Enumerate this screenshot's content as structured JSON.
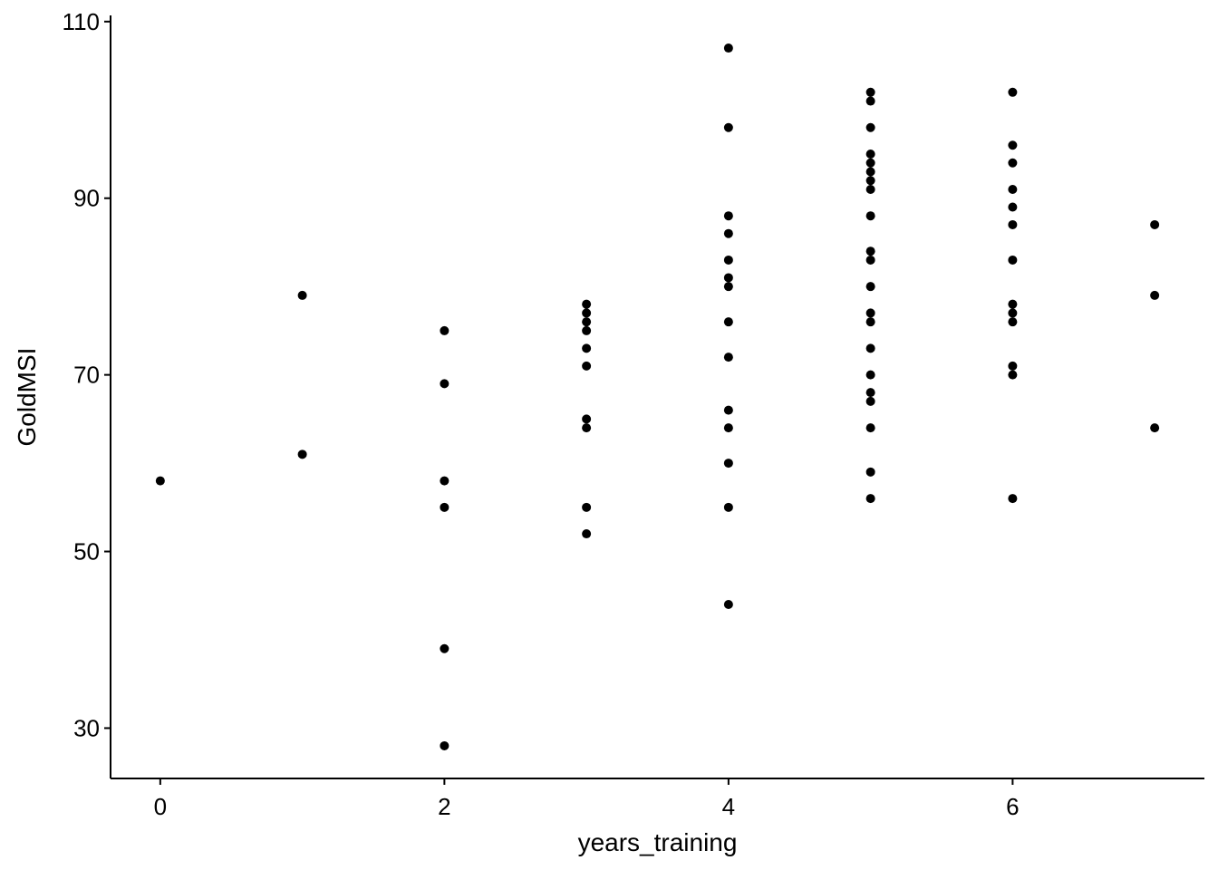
{
  "chart_data": {
    "type": "scatter",
    "title": "",
    "xlabel": "years_training",
    "ylabel": "GoldMSI",
    "xlim": [
      -0.35,
      7.35
    ],
    "ylim": [
      24.3,
      110.7
    ],
    "x_ticks": [
      0,
      2,
      4,
      6
    ],
    "x_tick_labels": [
      "0",
      "2",
      "4",
      "6"
    ],
    "y_ticks": [
      30,
      50,
      70,
      90,
      110
    ],
    "y_tick_labels": [
      "30",
      "50",
      "70",
      "90",
      "110"
    ],
    "grid": false,
    "legend": "none",
    "point_color": "#000000",
    "points": [
      {
        "x": 0,
        "y": 58
      },
      {
        "x": 1,
        "y": 79
      },
      {
        "x": 1,
        "y": 61
      },
      {
        "x": 2,
        "y": 75
      },
      {
        "x": 2,
        "y": 69
      },
      {
        "x": 2,
        "y": 58
      },
      {
        "x": 2,
        "y": 55
      },
      {
        "x": 2,
        "y": 39
      },
      {
        "x": 2,
        "y": 28
      },
      {
        "x": 3,
        "y": 78
      },
      {
        "x": 3,
        "y": 77
      },
      {
        "x": 3,
        "y": 76
      },
      {
        "x": 3,
        "y": 75
      },
      {
        "x": 3,
        "y": 73
      },
      {
        "x": 3,
        "y": 71
      },
      {
        "x": 3,
        "y": 65
      },
      {
        "x": 3,
        "y": 64
      },
      {
        "x": 3,
        "y": 55
      },
      {
        "x": 3,
        "y": 52
      },
      {
        "x": 4,
        "y": 107
      },
      {
        "x": 4,
        "y": 98
      },
      {
        "x": 4,
        "y": 88
      },
      {
        "x": 4,
        "y": 86
      },
      {
        "x": 4,
        "y": 83
      },
      {
        "x": 4,
        "y": 81
      },
      {
        "x": 4,
        "y": 80
      },
      {
        "x": 4,
        "y": 76
      },
      {
        "x": 4,
        "y": 72
      },
      {
        "x": 4,
        "y": 66
      },
      {
        "x": 4,
        "y": 64
      },
      {
        "x": 4,
        "y": 60
      },
      {
        "x": 4,
        "y": 55
      },
      {
        "x": 4,
        "y": 44
      },
      {
        "x": 5,
        "y": 102
      },
      {
        "x": 5,
        "y": 101
      },
      {
        "x": 5,
        "y": 98
      },
      {
        "x": 5,
        "y": 95
      },
      {
        "x": 5,
        "y": 94
      },
      {
        "x": 5,
        "y": 93
      },
      {
        "x": 5,
        "y": 92
      },
      {
        "x": 5,
        "y": 91
      },
      {
        "x": 5,
        "y": 88
      },
      {
        "x": 5,
        "y": 84
      },
      {
        "x": 5,
        "y": 83
      },
      {
        "x": 5,
        "y": 80
      },
      {
        "x": 5,
        "y": 77
      },
      {
        "x": 5,
        "y": 76
      },
      {
        "x": 5,
        "y": 73
      },
      {
        "x": 5,
        "y": 70
      },
      {
        "x": 5,
        "y": 68
      },
      {
        "x": 5,
        "y": 67
      },
      {
        "x": 5,
        "y": 64
      },
      {
        "x": 5,
        "y": 59
      },
      {
        "x": 5,
        "y": 56
      },
      {
        "x": 6,
        "y": 102
      },
      {
        "x": 6,
        "y": 96
      },
      {
        "x": 6,
        "y": 94
      },
      {
        "x": 6,
        "y": 91
      },
      {
        "x": 6,
        "y": 89
      },
      {
        "x": 6,
        "y": 87
      },
      {
        "x": 6,
        "y": 83
      },
      {
        "x": 6,
        "y": 78
      },
      {
        "x": 6,
        "y": 77
      },
      {
        "x": 6,
        "y": 76
      },
      {
        "x": 6,
        "y": 71
      },
      {
        "x": 6,
        "y": 70
      },
      {
        "x": 6,
        "y": 56
      },
      {
        "x": 7,
        "y": 87
      },
      {
        "x": 7,
        "y": 79
      },
      {
        "x": 7,
        "y": 64
      }
    ]
  }
}
